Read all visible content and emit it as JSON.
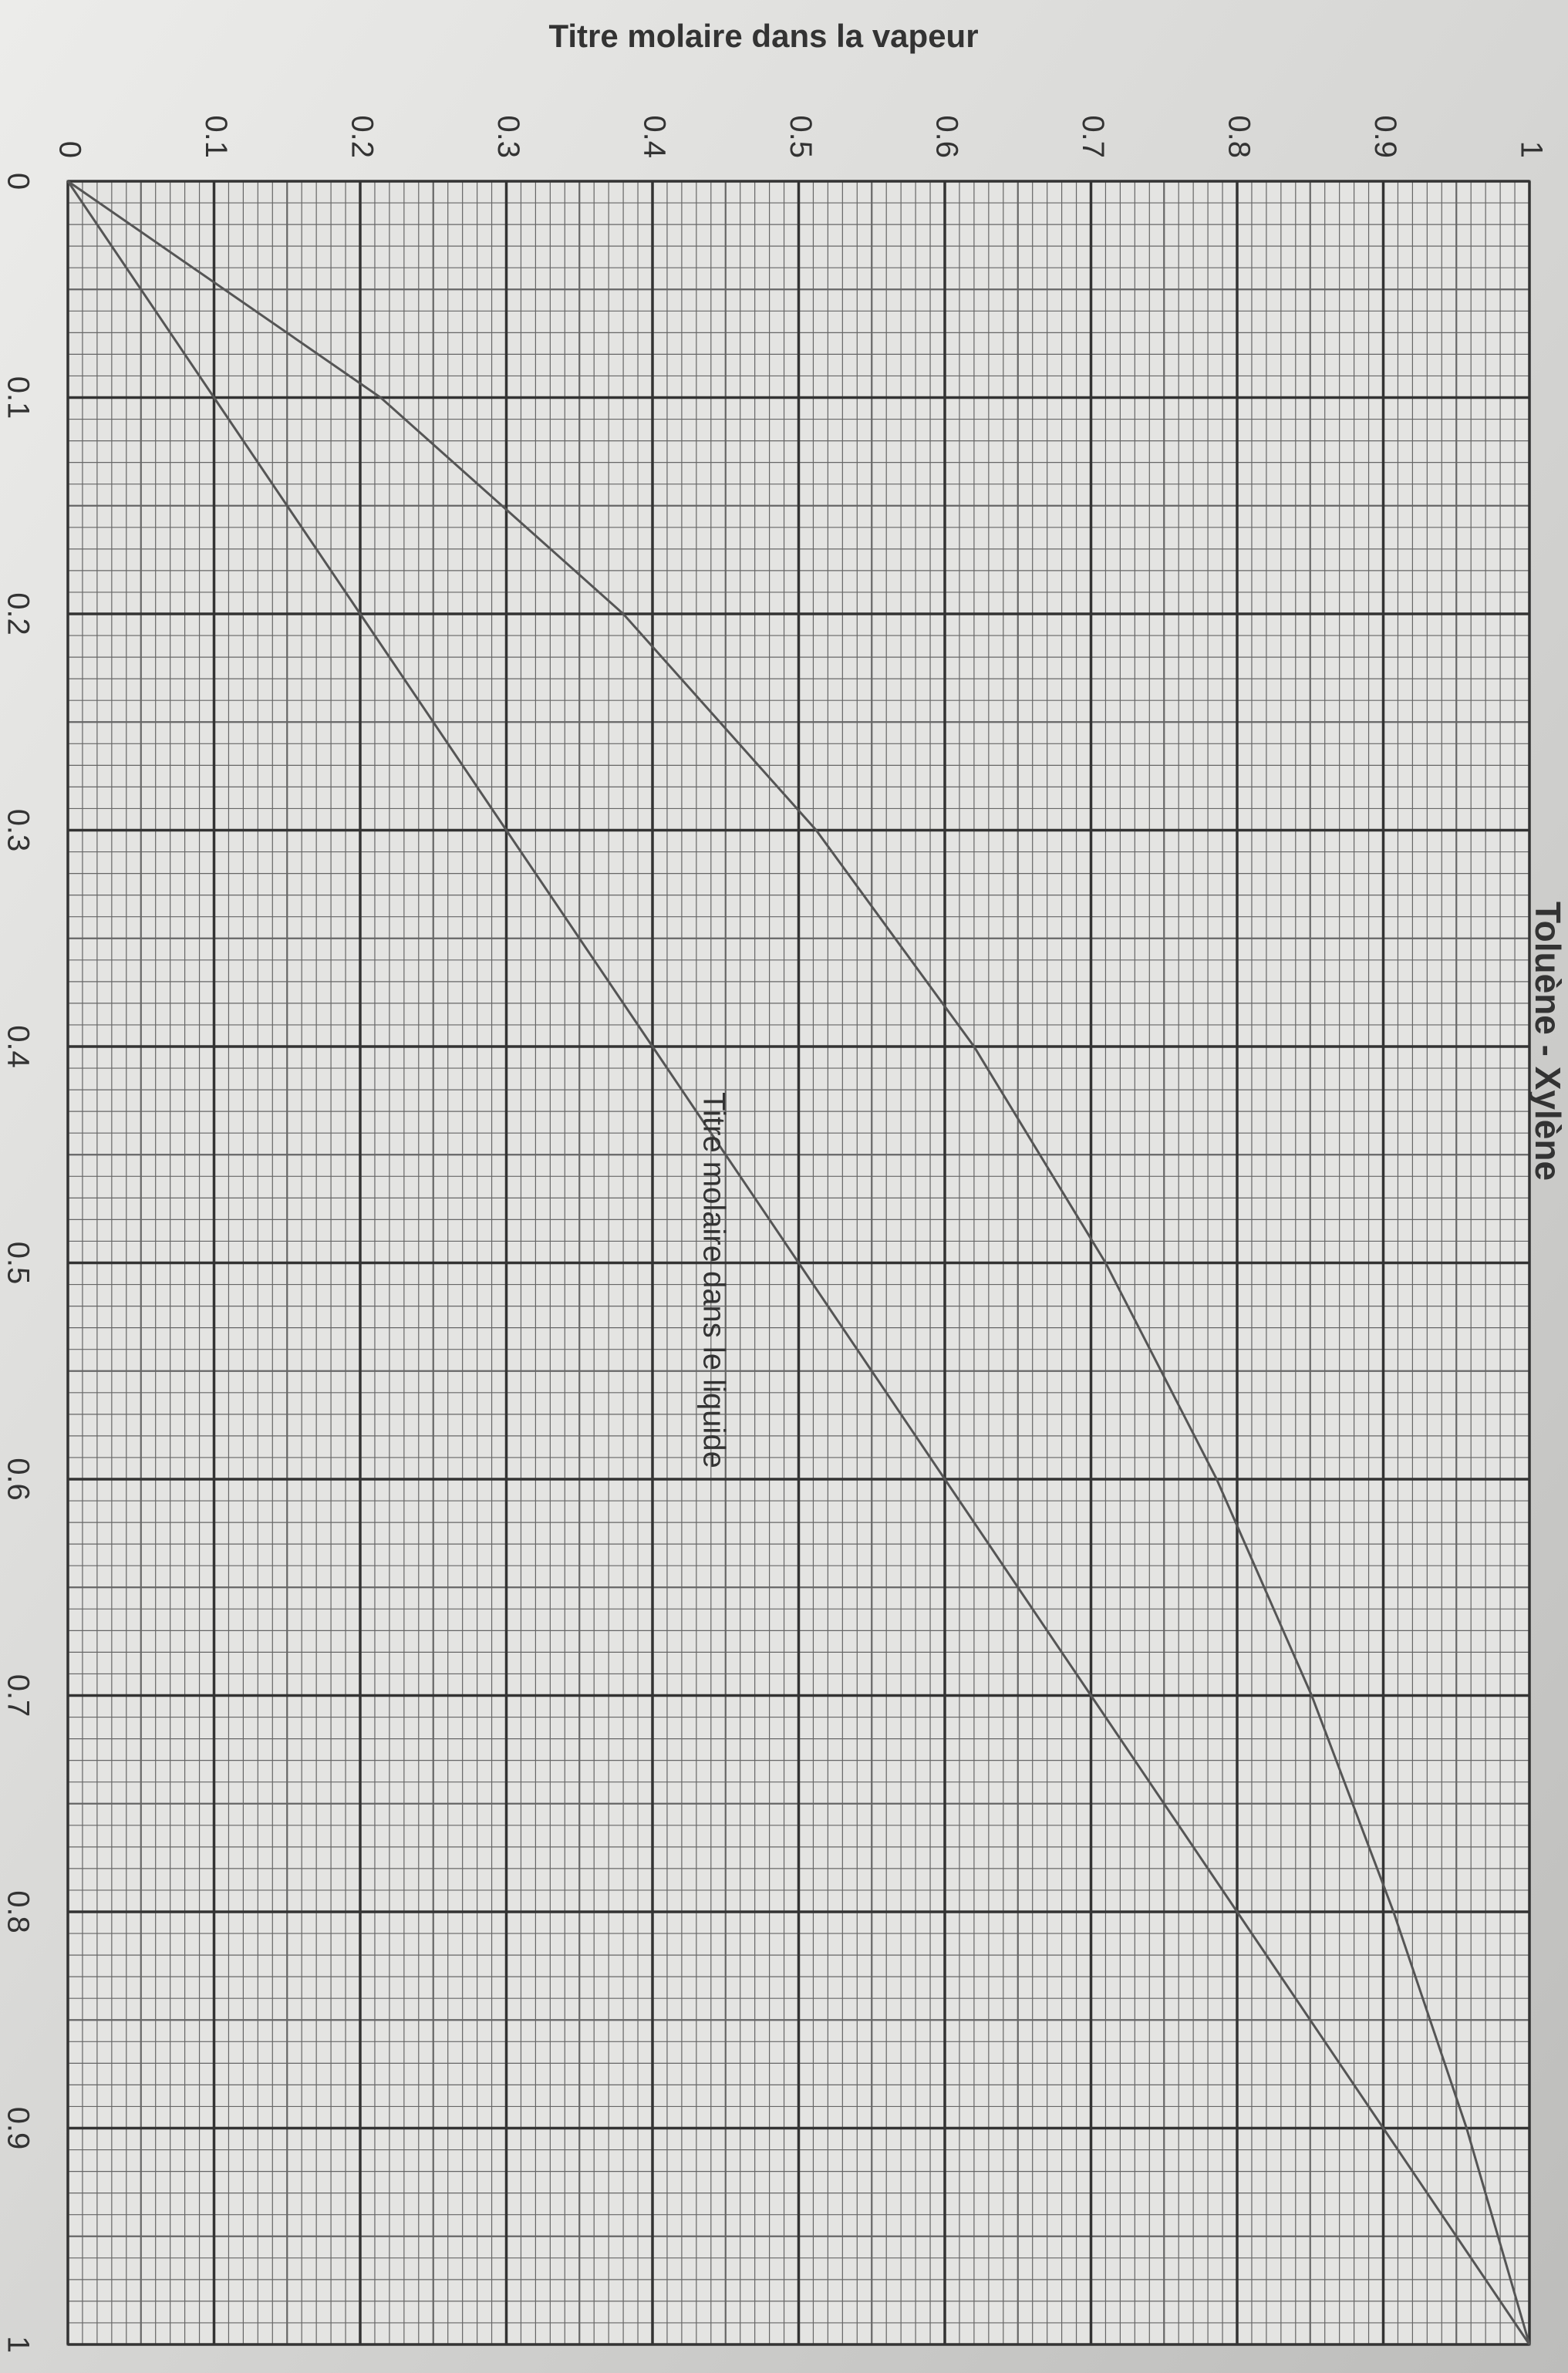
{
  "chart_data": {
    "type": "line",
    "title": "Toluène - Xylène",
    "x_label": "Titre molaire dans le liquide",
    "y_label": "Titre molaire dans la vapeur",
    "x": [
      0,
      0.1,
      0.2,
      0.3,
      0.4,
      0.5,
      0.6,
      0.7,
      0.8,
      0.9,
      1
    ],
    "series": [
      {
        "color": "#555555",
        "values": [
          0,
          0.214,
          0.38,
          0.512,
          0.62,
          0.71,
          0.786,
          0.851,
          0.907,
          0.957,
          1
        ]
      },
      {
        "color": "#555555",
        "values": [
          0,
          0.1,
          0.2,
          0.3,
          0.4,
          0.5,
          0.6,
          0.7,
          0.8,
          0.9,
          1
        ]
      }
    ],
    "xlim": [
      0,
      1
    ],
    "ylim": [
      0,
      1
    ],
    "xticks": [
      0,
      0.1,
      0.2,
      0.3,
      0.4,
      0.5,
      0.6,
      0.7,
      0.8,
      0.9,
      1
    ],
    "yticks": [
      0,
      0.1,
      0.2,
      0.3,
      0.4,
      0.5,
      0.6,
      0.7,
      0.8,
      0.9,
      1
    ],
    "grid": true
  }
}
